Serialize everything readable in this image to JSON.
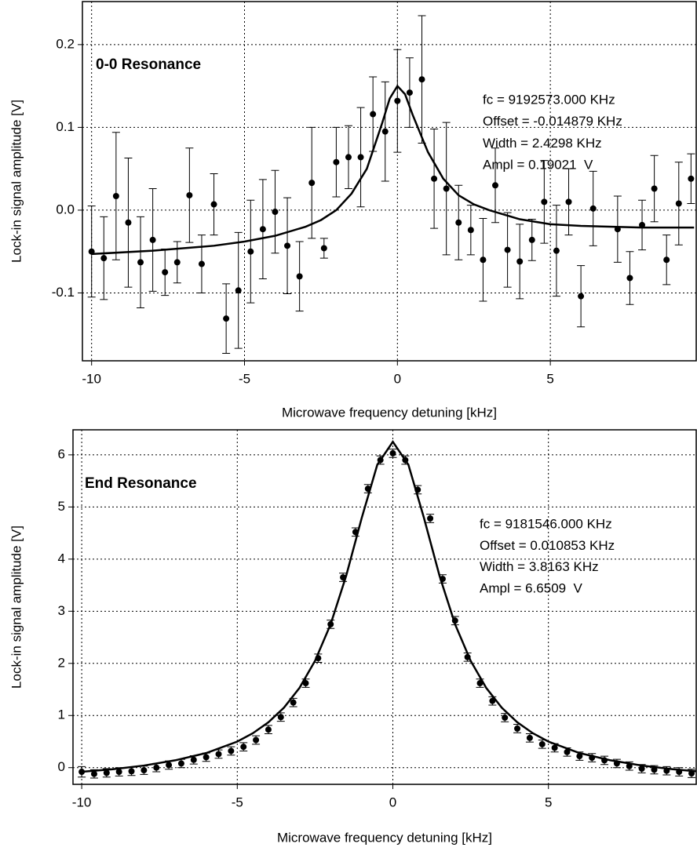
{
  "chart_data": [
    {
      "type": "scatter",
      "title": "0-0 Resonance",
      "x_label": "Microwave frequency detuning [kHz]",
      "y_label": "Lock-in signal amplitude [V]",
      "annotations": [
        "fc = 9192573.000 KHz",
        "Offset = -0.014879 KHz",
        "Width = 2.4298 KHz",
        "Ampl = 0.19021  V"
      ],
      "xlim": [
        -10.3,
        9.77
      ],
      "ylim": [
        -0.182,
        0.252
      ],
      "xticks": [
        -10,
        -5,
        0,
        5
      ],
      "yticks": [
        0.2,
        0.1,
        {
          "value": 0,
          "label": "0.0"
        },
        -0.1
      ],
      "grid": true,
      "series": [
        {
          "style": "points",
          "color": "#000000",
          "x": [
            -10,
            -9.6,
            -9.2,
            -8.8,
            -8.4,
            -8,
            -7.6,
            -7.2,
            -6.8,
            -6.4,
            -6,
            -5.6,
            -5.2,
            -4.8,
            -4.4,
            -4,
            -3.6,
            -3.2,
            -2.8,
            -2.4,
            -2,
            -1.6,
            -1.2,
            -0.8,
            -0.4,
            0,
            0.4,
            0.8,
            1.2,
            1.6,
            2,
            2.4,
            2.8,
            3.2,
            3.6,
            4,
            4.4,
            4.8,
            5.2,
            5.6,
            6,
            6.4,
            7.2,
            7.6,
            8,
            8.4,
            8.8,
            9.2,
            9.6
          ],
          "values": [
            -0.05,
            -0.058,
            0.017,
            -0.015,
            -0.063,
            -0.036,
            -0.075,
            -0.063,
            0.018,
            -0.065,
            0.007,
            -0.131,
            -0.097,
            -0.05,
            -0.023,
            -0.002,
            -0.043,
            -0.08,
            0.033,
            -0.046,
            0.058,
            0.064,
            0.064,
            0.116,
            0.095,
            0.132,
            0.142,
            0.158,
            0.038,
            0.026,
            -0.015,
            -0.024,
            -0.06,
            0.03,
            -0.048,
            -0.062,
            -0.036,
            0.01,
            -0.049,
            0.01,
            -0.104,
            0.002,
            -0.023,
            -0.082,
            -0.018,
            0.026,
            -0.06,
            0.008,
            0.038
          ],
          "errors": [
            0.055,
            0.05,
            0.077,
            0.078,
            0.055,
            0.062,
            0.028,
            0.025,
            0.057,
            0.035,
            0.037,
            0.042,
            0.07,
            0.062,
            0.06,
            0.05,
            0.058,
            0.042,
            0.067,
            0.012,
            0.042,
            0.038,
            0.06,
            0.045,
            0.06,
            0.062,
            0.042,
            0.077,
            0.06,
            0.08,
            0.045,
            0.03,
            0.05,
            0.045,
            0.045,
            0.045,
            0.025,
            0.05,
            0.055,
            0.04,
            0.037,
            0.045,
            0.04,
            0.032,
            0.03,
            0.04,
            0.03,
            0.05,
            0.03
          ]
        },
        {
          "style": "line",
          "color": "#000000",
          "x": [
            -10,
            -8,
            -6,
            -5,
            -4,
            -3,
            -2.5,
            -2,
            -1.5,
            -1,
            -0.5,
            -0.25,
            0,
            0.25,
            0.5,
            1,
            1.5,
            2,
            2.5,
            3,
            4,
            5,
            6,
            8,
            9.7
          ],
          "values": [
            -0.053,
            -0.049,
            -0.043,
            -0.038,
            -0.031,
            -0.02,
            -0.012,
            0.0,
            0.02,
            0.05,
            0.105,
            0.135,
            0.15,
            0.14,
            0.115,
            0.07,
            0.038,
            0.018,
            0.007,
            0.0,
            -0.011,
            -0.017,
            -0.019,
            -0.021,
            -0.021
          ]
        }
      ]
    },
    {
      "type": "scatter",
      "title": "End Resonance",
      "x_label": "Microwave frequency detuning [kHz]",
      "y_label": "Lock-in signal amplitude [V]",
      "annotations": [
        "fc = 9181546.000 KHz",
        "Offset = 0.010853 KHz",
        "Width = 3.8163 KHz",
        "Ampl = 6.6509  V"
      ],
      "xlim": [
        -10.28,
        9.75
      ],
      "ylim": [
        -0.32,
        6.48
      ],
      "xticks": [
        -10,
        -5,
        0,
        5
      ],
      "yticks": [
        0,
        1,
        2,
        3,
        4,
        5,
        6
      ],
      "grid": true,
      "series": [
        {
          "style": "points",
          "color": "#000000",
          "x": [
            -10,
            -9.6,
            -9.2,
            -8.8,
            -8.4,
            -8,
            -7.6,
            -7.2,
            -6.8,
            -6.4,
            -6,
            -5.6,
            -5.2,
            -4.8,
            -4.4,
            -4,
            -3.6,
            -3.2,
            -2.8,
            -2.4,
            -2,
            -1.6,
            -1.2,
            -0.8,
            -0.4,
            0,
            0.4,
            0.8,
            1.2,
            1.6,
            2,
            2.4,
            2.8,
            3.2,
            3.6,
            4,
            4.4,
            4.8,
            5.2,
            5.6,
            6,
            6.4,
            6.8,
            7.2,
            7.6,
            8,
            8.4,
            8.8,
            9.2,
            9.6
          ],
          "values": [
            -0.08,
            -0.12,
            -0.1,
            -0.08,
            -0.07,
            -0.05,
            0.0,
            0.05,
            0.08,
            0.15,
            0.2,
            0.26,
            0.32,
            0.4,
            0.53,
            0.73,
            0.97,
            1.25,
            1.62,
            2.1,
            2.75,
            3.65,
            4.52,
            5.35,
            5.9,
            6.03,
            5.9,
            5.33,
            4.78,
            3.62,
            2.82,
            2.12,
            1.62,
            1.28,
            0.96,
            0.75,
            0.57,
            0.45,
            0.38,
            0.3,
            0.22,
            0.19,
            0.14,
            0.08,
            0.03,
            -0.02,
            -0.04,
            -0.06,
            -0.08,
            -0.11
          ],
          "errors": [
            0.1,
            0.08,
            0.08,
            0.08,
            0.08,
            0.08,
            0.08,
            0.08,
            0.08,
            0.08,
            0.08,
            0.08,
            0.08,
            0.08,
            0.08,
            0.08,
            0.08,
            0.08,
            0.08,
            0.08,
            0.08,
            0.08,
            0.08,
            0.08,
            0.08,
            0.08,
            0.08,
            0.08,
            0.08,
            0.08,
            0.08,
            0.08,
            0.08,
            0.08,
            0.08,
            0.08,
            0.08,
            0.08,
            0.08,
            0.08,
            0.08,
            0.08,
            0.08,
            0.08,
            0.08,
            0.08,
            0.08,
            0.08,
            0.08,
            0.08
          ]
        },
        {
          "style": "line",
          "color": "#000000",
          "x": [
            -10,
            -9,
            -8,
            -7,
            -6,
            -5,
            -4.5,
            -4,
            -3.5,
            -3,
            -2.5,
            -2,
            -1.5,
            -1,
            -0.5,
            0,
            0.5,
            1,
            1.5,
            2,
            2.5,
            3,
            3.5,
            4,
            4.5,
            5,
            6,
            7,
            8,
            9,
            9.75
          ],
          "values": [
            -0.08,
            -0.03,
            0.04,
            0.14,
            0.28,
            0.5,
            0.66,
            0.87,
            1.15,
            1.53,
            2.05,
            2.75,
            3.68,
            4.79,
            5.81,
            6.25,
            5.81,
            4.79,
            3.68,
            2.75,
            2.05,
            1.53,
            1.15,
            0.87,
            0.66,
            0.5,
            0.28,
            0.14,
            0.04,
            -0.03,
            -0.07
          ]
        }
      ]
    }
  ]
}
